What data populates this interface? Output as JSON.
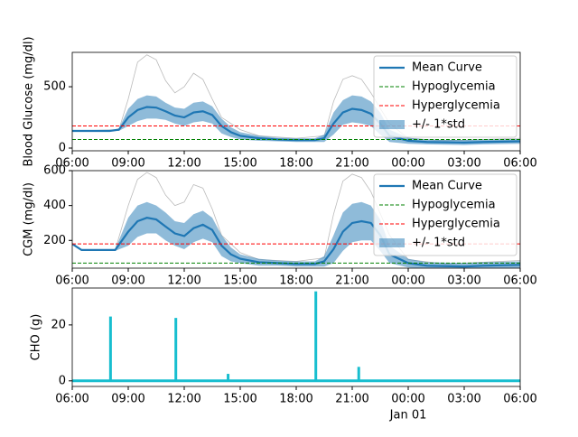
{
  "chart_data": [
    {
      "type": "line",
      "ylabel": "Blood Glucose (mg/dl)",
      "xlim": [
        6,
        30
      ],
      "ylim": [
        -22,
        780
      ],
      "yticks": [
        0,
        500
      ],
      "xticks": [
        {
          "value": 6,
          "label": "06:00"
        },
        {
          "value": 9,
          "label": "09:00"
        },
        {
          "value": 12,
          "label": "12:00"
        },
        {
          "value": 15,
          "label": "15:00"
        },
        {
          "value": 18,
          "label": "18:00"
        },
        {
          "value": 21,
          "label": "21:00"
        },
        {
          "value": 24,
          "label": "00:00"
        },
        {
          "value": 27,
          "label": "03:00"
        },
        {
          "value": 30,
          "label": "06:00"
        }
      ],
      "legend": "upper right",
      "series": [
        {
          "kind": "line",
          "color": "#aaaaaa",
          "x": [
            6,
            8.5,
            9,
            9.5,
            10,
            10.5,
            11,
            11.5,
            12,
            12.5,
            13,
            13.5,
            14,
            15,
            16,
            18,
            19.5,
            20,
            20.5,
            21,
            21.5,
            22,
            23,
            24,
            26,
            30
          ],
          "values": [
            140,
            150,
            400,
            700,
            760,
            720,
            550,
            450,
            500,
            610,
            560,
            400,
            250,
            150,
            100,
            80,
            100,
            380,
            560,
            590,
            560,
            450,
            200,
            80,
            60,
            80
          ]
        },
        {
          "name": "Mean Curve",
          "kind": "line",
          "color": "#1f77b4",
          "x": [
            6,
            8,
            8.5,
            9,
            9.5,
            10,
            10.5,
            11,
            11.5,
            12,
            12.5,
            13,
            13.5,
            14,
            14.5,
            15,
            16,
            17,
            18,
            19,
            19.5,
            20,
            20.5,
            21,
            21.5,
            22,
            22.5,
            23,
            24,
            25,
            27,
            28,
            30
          ],
          "values": [
            140,
            140,
            150,
            250,
            310,
            335,
            330,
            300,
            265,
            250,
            290,
            300,
            270,
            180,
            130,
            100,
            80,
            70,
            65,
            65,
            80,
            200,
            290,
            320,
            310,
            280,
            200,
            100,
            60,
            50,
            45,
            50,
            55
          ]
        },
        {
          "name": "Hypoglycemia",
          "kind": "hline",
          "style": "dashed",
          "color": "#008000",
          "value": 70
        },
        {
          "name": "Hyperglycemia",
          "kind": "hline",
          "style": "dashed",
          "color": "#ff0000",
          "value": 180
        },
        {
          "name": "+/- 1*std",
          "kind": "band",
          "color": "#1f77b4",
          "x": [
            6,
            8,
            8.5,
            9,
            9.5,
            10,
            10.5,
            11,
            11.5,
            12,
            12.5,
            13,
            13.5,
            14,
            14.5,
            15,
            16,
            17,
            18,
            19,
            19.5,
            20,
            20.5,
            21,
            21.5,
            22,
            22.5,
            23,
            24,
            25,
            27,
            28,
            30
          ],
          "upper": [
            140,
            140,
            160,
            320,
            400,
            430,
            420,
            370,
            330,
            320,
            370,
            380,
            340,
            240,
            170,
            130,
            100,
            85,
            80,
            80,
            110,
            290,
            390,
            430,
            420,
            380,
            290,
            150,
            85,
            70,
            65,
            70,
            75
          ],
          "lower": [
            140,
            140,
            140,
            180,
            220,
            240,
            240,
            230,
            200,
            180,
            210,
            220,
            200,
            120,
            90,
            70,
            60,
            55,
            50,
            50,
            50,
            110,
            190,
            210,
            200,
            180,
            110,
            50,
            35,
            30,
            25,
            30,
            35
          ]
        }
      ]
    },
    {
      "type": "line",
      "ylabel": "CGM (mg/dl)",
      "xlim": [
        6,
        30
      ],
      "ylim": [
        41,
        600
      ],
      "yticks": [
        200,
        400,
        600
      ],
      "xticks": [
        {
          "value": 6,
          "label": "06:00"
        },
        {
          "value": 9,
          "label": "09:00"
        },
        {
          "value": 12,
          "label": "12:00"
        },
        {
          "value": 15,
          "label": "15:00"
        },
        {
          "value": 18,
          "label": "18:00"
        },
        {
          "value": 21,
          "label": "21:00"
        },
        {
          "value": 24,
          "label": "00:00"
        },
        {
          "value": 27,
          "label": "03:00"
        },
        {
          "value": 30,
          "label": "06:00"
        }
      ],
      "legend": "upper right",
      "series": [
        {
          "kind": "line",
          "color": "#aaaaaa",
          "x": [
            6,
            6.5,
            8.3,
            9,
            9.5,
            10,
            10.5,
            11,
            11.5,
            12,
            12.5,
            13,
            13.5,
            14,
            15,
            16,
            18,
            19.5,
            20,
            20.5,
            21,
            21.5,
            22,
            23,
            24,
            26,
            30
          ],
          "values": [
            180,
            145,
            145,
            400,
            550,
            590,
            560,
            460,
            400,
            420,
            520,
            500,
            380,
            230,
            130,
            90,
            80,
            100,
            350,
            540,
            580,
            560,
            480,
            230,
            90,
            65,
            85
          ]
        },
        {
          "name": "Mean Curve",
          "kind": "line",
          "color": "#1f77b4",
          "x": [
            6,
            6.5,
            8.3,
            9,
            9.5,
            10,
            10.5,
            11,
            11.5,
            12,
            12.5,
            13,
            13.5,
            14,
            14.5,
            15,
            16,
            17,
            18,
            19,
            19.5,
            20,
            20.5,
            21,
            21.5,
            22,
            22.5,
            23,
            24,
            25,
            27,
            28,
            30
          ],
          "values": [
            180,
            145,
            145,
            250,
            310,
            330,
            320,
            280,
            240,
            225,
            270,
            290,
            260,
            170,
            120,
            95,
            75,
            70,
            65,
            65,
            80,
            150,
            250,
            300,
            310,
            300,
            230,
            120,
            70,
            55,
            50,
            55,
            60
          ]
        },
        {
          "name": "Hypoglycemia",
          "kind": "hline",
          "style": "dashed",
          "color": "#008000",
          "value": 70
        },
        {
          "name": "Hyperglycemia",
          "kind": "hline",
          "style": "dashed",
          "color": "#ff0000",
          "value": 180
        },
        {
          "name": "+/- 1*std",
          "kind": "band",
          "color": "#1f77b4",
          "x": [
            6,
            6.5,
            8.3,
            9,
            9.5,
            10,
            10.5,
            11,
            11.5,
            12,
            12.5,
            13,
            13.5,
            14,
            14.5,
            15,
            16,
            17,
            18,
            19,
            19.5,
            20,
            20.5,
            21,
            21.5,
            22,
            22.5,
            23,
            24,
            25,
            27,
            28,
            30
          ],
          "upper": [
            180,
            150,
            150,
            330,
            400,
            420,
            400,
            360,
            310,
            300,
            350,
            370,
            330,
            230,
            160,
            120,
            95,
            85,
            80,
            80,
            110,
            230,
            360,
            410,
            420,
            400,
            320,
            170,
            95,
            75,
            70,
            75,
            80
          ],
          "lower": [
            180,
            140,
            140,
            170,
            220,
            240,
            240,
            200,
            170,
            150,
            190,
            210,
            190,
            110,
            80,
            70,
            55,
            55,
            50,
            50,
            50,
            70,
            140,
            190,
            200,
            200,
            140,
            70,
            45,
            35,
            30,
            35,
            40
          ]
        }
      ]
    },
    {
      "type": "bar",
      "ylabel": "CHO (g)",
      "xlim": [
        6,
        30
      ],
      "ylim": [
        -2,
        33.2
      ],
      "yticks": [
        0,
        20
      ],
      "xticks": [
        {
          "value": 6,
          "label": "06:00"
        },
        {
          "value": 9,
          "label": "09:00"
        },
        {
          "value": 12,
          "label": "12:00"
        },
        {
          "value": 15,
          "label": "15:00"
        },
        {
          "value": 18,
          "label": "18:00"
        },
        {
          "value": 21,
          "label": "21:00"
        },
        {
          "value": 24,
          "label": "00:00"
        },
        {
          "value": 27,
          "label": "03:00"
        },
        {
          "value": 30,
          "label": "06:00"
        }
      ],
      "annotations": [
        {
          "x": 24,
          "text": "Jan 01"
        }
      ],
      "color": "#17becf",
      "x": [
        8.05,
        11.55,
        14.35,
        19.05,
        21.35
      ],
      "values": [
        23,
        22.5,
        2.5,
        32,
        5
      ]
    }
  ]
}
